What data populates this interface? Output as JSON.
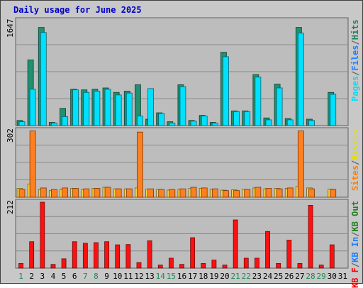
{
  "chart_data": {
    "type": "bar",
    "title": "Daily usage for June 2025",
    "categories": [
      "1",
      "2",
      "3",
      "4",
      "5",
      "6",
      "7",
      "8",
      "9",
      "10",
      "11",
      "12",
      "13",
      "14",
      "15",
      "16",
      "17",
      "18",
      "19",
      "20",
      "21",
      "22",
      "23",
      "24",
      "25",
      "26",
      "27",
      "28",
      "29",
      "30",
      "31"
    ],
    "weekend_days": [
      "1",
      "7",
      "8",
      "14",
      "15",
      "21",
      "22",
      "28",
      "29"
    ],
    "panels": [
      {
        "id": "requests",
        "max_label": "1647",
        "ylim": [
          0,
          1647
        ],
        "legend": [
          {
            "name": "Pages",
            "color": "#00e0ff"
          },
          {
            "sep": "/",
            "color": "#606060"
          },
          {
            "name": "Files",
            "color": "#2080ff"
          },
          {
            "sep": "/",
            "color": "#606060"
          },
          {
            "name": "Hits",
            "color": "#208060"
          }
        ],
        "series": [
          {
            "name": "Hits",
            "color": "#209070",
            "values": [
              80,
              1030,
              1540,
              50,
              270,
              570,
              560,
              570,
              590,
              520,
              540,
              640,
              100,
              200,
              60,
              640,
              80,
              160,
              50,
              1150,
              230,
              230,
              800,
              120,
              650,
              110,
              1540,
              100,
              0,
              520,
              0
            ]
          },
          {
            "name": "Files",
            "color": "#00e0ff",
            "values": [
              60,
              570,
              1460,
              40,
              140,
              560,
              520,
              540,
              570,
              480,
              510,
              150,
              580,
              190,
              40,
              610,
              70,
              150,
              40,
              1080,
              220,
              220,
              760,
              90,
              590,
              90,
              1450,
              80,
              0,
              490,
              0
            ]
          }
        ]
      },
      {
        "id": "visits",
        "max_label": "302",
        "ylim": [
          0,
          302
        ],
        "legend": [
          {
            "name": "Sites",
            "color": "#ff8000"
          },
          {
            "sep": "/",
            "color": "#606060"
          },
          {
            "name": "Visits",
            "color": "#e0e000"
          }
        ],
        "series": [
          {
            "name": "Visits",
            "color": "#ffd040",
            "values": [
              40,
              60,
              35,
              30,
              35,
              40,
              35,
              40,
              45,
              38,
              38,
              42,
              37,
              35,
              32,
              35,
              40,
              40,
              35,
              32,
              33,
              35,
              42,
              38,
              40,
              40,
              48,
              42,
              0,
              36,
              0
            ]
          },
          {
            "name": "Sites",
            "color": "#ff8020",
            "values": [
              35,
              300,
              42,
              35,
              42,
              40,
              38,
              40,
              45,
              38,
              38,
              295,
              38,
              35,
              35,
              38,
              45,
              42,
              38,
              30,
              30,
              35,
              45,
              40,
              38,
              42,
              300,
              38,
              0,
              35,
              0
            ]
          }
        ]
      },
      {
        "id": "bandwidth",
        "max_label": "212",
        "ylim": [
          0,
          212
        ],
        "legend": [
          {
            "name": "KB F",
            "color": "#ff0000"
          },
          {
            "sep": "/",
            "color": "#606060"
          },
          {
            "name": "KB In",
            "color": "#2080ff"
          },
          {
            "sep": "/",
            "color": "#606060"
          },
          {
            "name": "KB Out",
            "color": "#208020"
          }
        ],
        "series": [
          {
            "name": "KB F",
            "color": "#ff1010",
            "values": [
              15,
              85,
              212,
              12,
              30,
              85,
              80,
              82,
              85,
              75,
              76,
              18,
              88,
              10,
              32,
              12,
              98,
              15,
              26,
              10,
              155,
              32,
              32,
              118,
              15,
              90,
              15,
              202,
              10,
              75,
              0
            ]
          }
        ]
      }
    ]
  }
}
